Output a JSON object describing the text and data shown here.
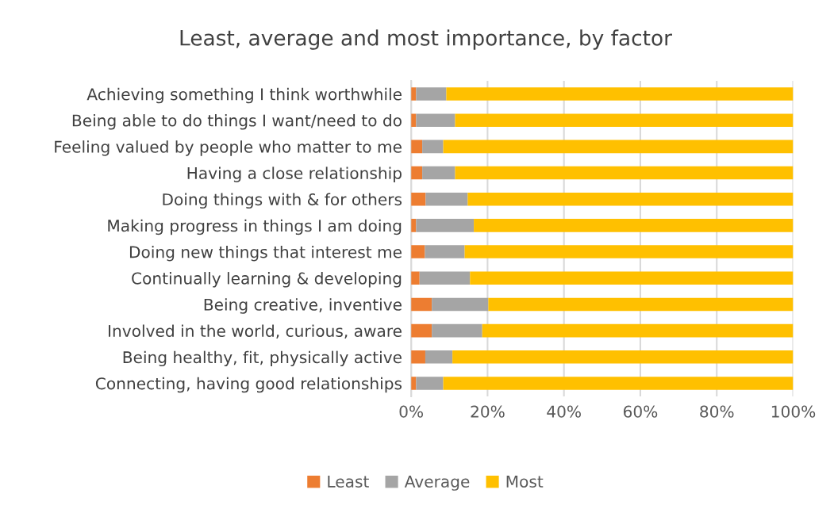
{
  "chart_data": {
    "type": "bar",
    "orientation": "horizontal",
    "stacked": true,
    "title": "Least, average and most importance, by factor",
    "categories": [
      "Achieving something I think worthwhile",
      "Being able to do things I want/need to do",
      "Feeling valued by people who matter to me",
      "Having a close relationship",
      "Doing things with & for others",
      "Making progress in things I am doing",
      "Doing new things that interest me",
      "Continually learning & developing",
      "Being creative, inventive",
      "Involved in the world, curious, aware",
      "Being healthy, fit, physically active",
      "Connecting, having good relationships"
    ],
    "series": [
      {
        "name": "Least",
        "color": "#ed7d31",
        "values": [
          1.3,
          1.3,
          2.9,
          2.9,
          3.8,
          1.3,
          3.6,
          2.2,
          5.4,
          5.4,
          3.7,
          1.3
        ]
      },
      {
        "name": "Average",
        "color": "#a5a5a5",
        "values": [
          7.9,
          10.2,
          5.5,
          8.6,
          11.0,
          15.1,
          10.4,
          13.2,
          14.8,
          13.2,
          7.1,
          7.1
        ]
      },
      {
        "name": "Most",
        "color": "#ffc000",
        "values": [
          90.8,
          88.5,
          91.6,
          88.5,
          85.2,
          83.6,
          86.0,
          84.6,
          79.8,
          81.4,
          89.2,
          91.6
        ]
      }
    ],
    "xlim": [
      0,
      100
    ],
    "xticks": [
      {
        "value": 0,
        "label": "0%"
      },
      {
        "value": 20,
        "label": "20%"
      },
      {
        "value": 40,
        "label": "40%"
      },
      {
        "value": 60,
        "label": "60%"
      },
      {
        "value": 80,
        "label": "80%"
      },
      {
        "value": 100,
        "label": "100%"
      }
    ],
    "grid": "x",
    "legend": "bottom"
  }
}
